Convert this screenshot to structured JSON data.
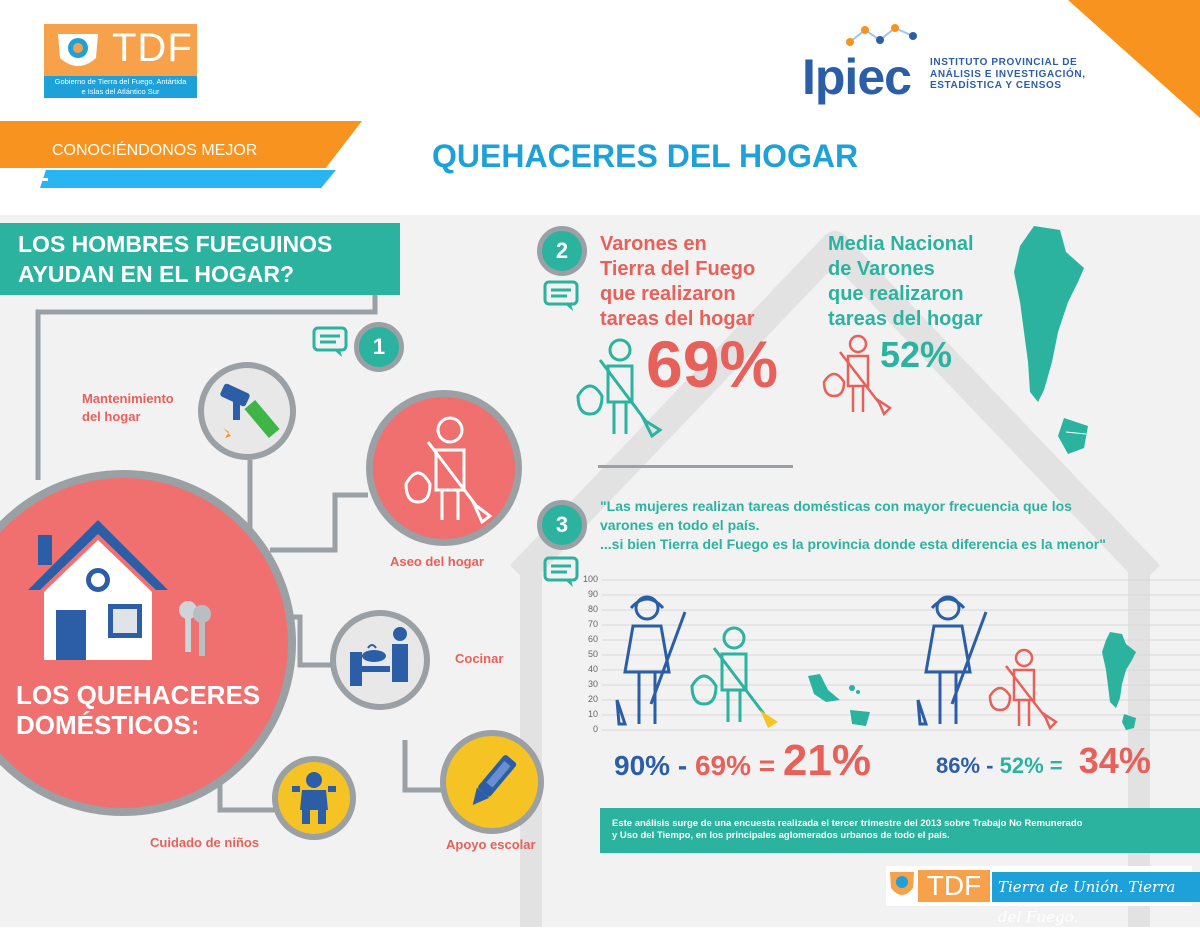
{
  "header": {
    "tdf_logo_text": "TDF",
    "tdf_logo_caption_line1": "Gobierno de Tierra del Fuego, Antártida",
    "tdf_logo_caption_line2": "e Islas del Atlántico Sur",
    "ipiec_logo_text": "Ipiec",
    "ipiec_line1": "INSTITUTO PROVINCIAL DE",
    "ipiec_line2": "ANÁLISIS E INVESTIGACIÓN,",
    "ipiec_line3": "ESTADÍSTICA Y CENSOS"
  },
  "banner": {
    "label": "CONOCIÉNDONOS MEJOR"
  },
  "title": "QUEHACERES DEL HOGAR",
  "question": {
    "line1": "LOS HOMBRES FUEGUINOS",
    "line2": "AYUDAN EN EL HOGAR?"
  },
  "hub": {
    "line1": "LOS QUEHACERES",
    "line2": "DOMÉSTICOS:"
  },
  "steps": {
    "one": "1",
    "two": "2",
    "three": "3"
  },
  "tasks": {
    "mantenimiento_line1": "Mantenimiento",
    "mantenimiento_line2": "del hogar",
    "aseo": "Aseo del hogar",
    "cocinar": "Cocinar",
    "cuidado": "Cuidado de niños",
    "apoyo": "Apoyo escolar"
  },
  "stat_tdf": {
    "line1": "Varones en",
    "line2": "Tierra del Fuego",
    "line3": "que realizaron",
    "line4": "tareas del hogar",
    "value": "69%"
  },
  "stat_national": {
    "line1": "Media Nacional",
    "line2": "de Varones",
    "line3": "que realizaron",
    "line4": "tareas del hogar",
    "value": "52%"
  },
  "quote": {
    "line1": "\"Las mujeres realizan tareas domésticas con mayor frecuencia que los",
    "line2": "varones en todo el país.",
    "line3": "...si bien Tierra del Fuego es la provincia donde esta diferencia es la menor\""
  },
  "chart_data": {
    "type": "table",
    "ylim": [
      0,
      100
    ],
    "y_ticks": [
      "100",
      "90",
      "80",
      "70",
      "60",
      "50",
      "40",
      "30",
      "20",
      "10",
      "0"
    ],
    "comparisons": [
      {
        "women": "90%",
        "minus": "-",
        "men": "69%",
        "equals": "=",
        "diff": "21%"
      },
      {
        "women": "86%",
        "minus": "-",
        "men": "52%",
        "equals": "=",
        "diff": "34%"
      }
    ]
  },
  "note": {
    "line1": "Este análisis surge de una encuesta realizada el tercer trimestre del 2013 sobre Trabajo No Remunerado",
    "line2": "y Uso del Tiempo, en los principales aglomerados urbanos de todo el país."
  },
  "footer": {
    "tdf": "TDF",
    "slogan": "Tierra de Unión. Tierra del Fuego."
  },
  "colors": {
    "teal": "#2bb3a0",
    "red": "#e8605a",
    "navy": "#2c5ea8",
    "orange": "#f7931e",
    "blue": "#1da1d8",
    "grey": "#9aa0a4"
  }
}
